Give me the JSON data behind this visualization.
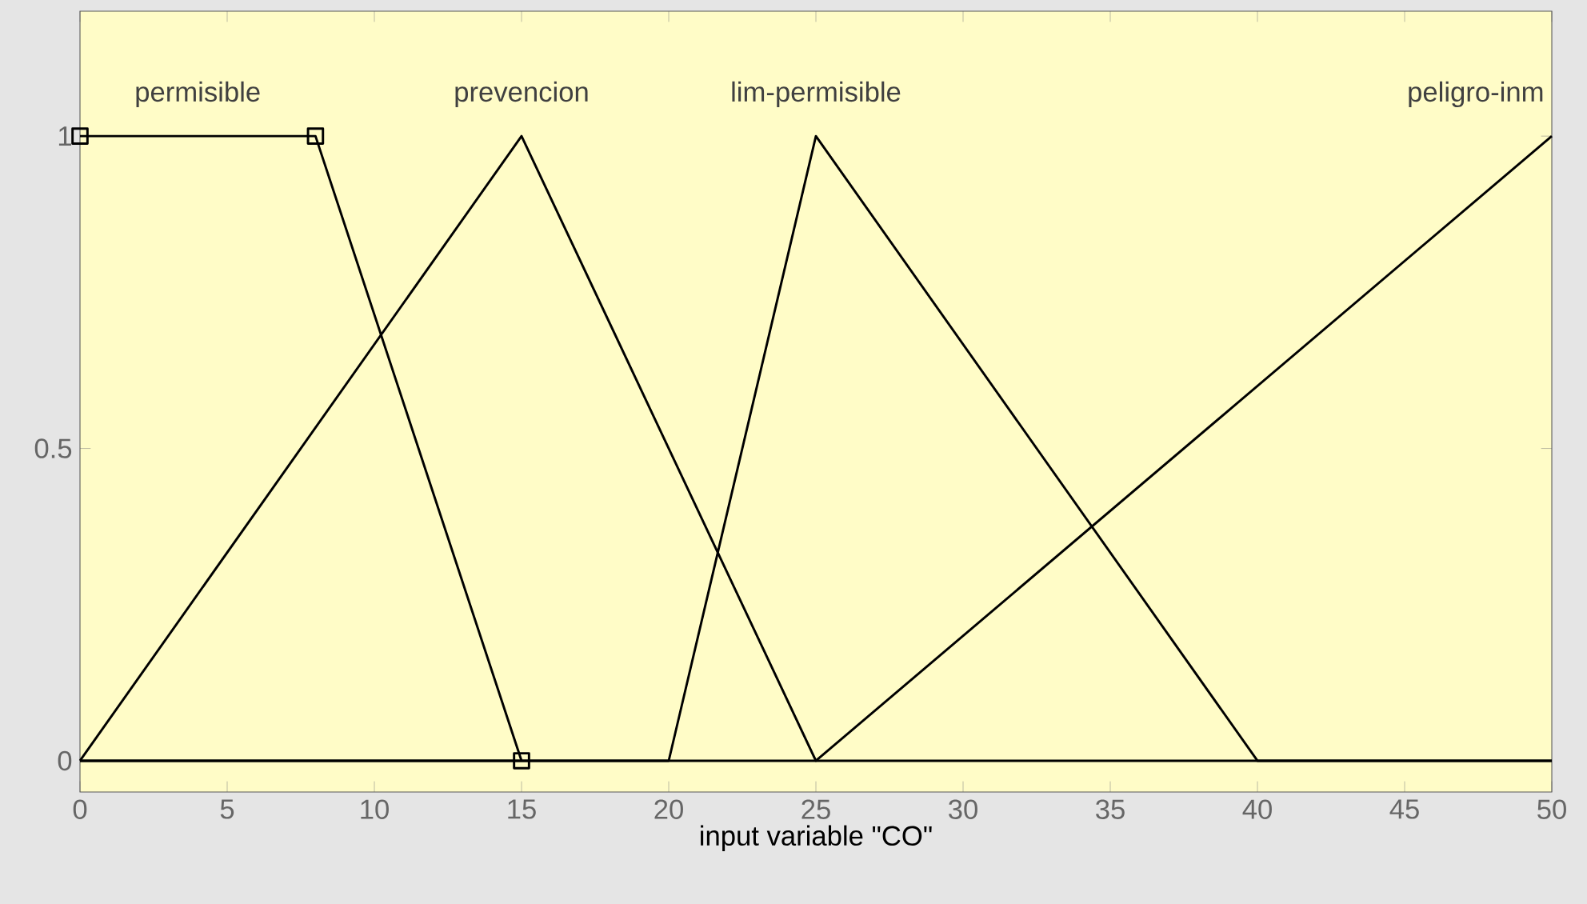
{
  "chart_data": {
    "type": "line",
    "xlabel": "input variable \"CO\"",
    "xlim": [
      0,
      50
    ],
    "ylim": [
      -0.05,
      1.2
    ],
    "xticks": [
      0,
      5,
      10,
      15,
      20,
      25,
      30,
      35,
      40,
      45,
      50
    ],
    "yticks": [
      0,
      0.5,
      1
    ],
    "grid": false,
    "marker": "none",
    "line_style": "solid",
    "series": [
      {
        "name": "permisible",
        "color": "#000000",
        "marker": "square",
        "x": [
          0,
          8,
          15
        ],
        "values": [
          1,
          1,
          0
        ]
      },
      {
        "name": "prevencion",
        "color": "#000000",
        "x": [
          0,
          15,
          25,
          50
        ],
        "values": [
          0,
          1,
          0,
          0
        ]
      },
      {
        "name": "lim-permisible",
        "color": "#000000",
        "x": [
          0,
          20,
          25,
          40,
          50
        ],
        "values": [
          0,
          0,
          1,
          0,
          0
        ]
      },
      {
        "name": "peligro-inm",
        "color": "#000000",
        "x": [
          0,
          25,
          50
        ],
        "values": [
          0,
          0,
          1
        ]
      }
    ]
  }
}
